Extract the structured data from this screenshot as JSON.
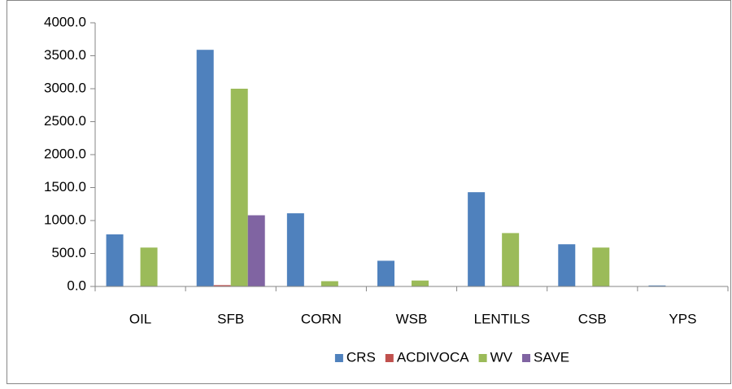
{
  "chart_data": {
    "type": "bar",
    "categories": [
      "OIL",
      "SFB",
      "CORN",
      "WSB",
      "LENTILS",
      "CSB",
      "YPS"
    ],
    "series": [
      {
        "name": "CRS",
        "color": "#4f81bd",
        "values": [
          790,
          3590,
          1110,
          390,
          1430,
          640,
          15
        ]
      },
      {
        "name": "ACDIVOCA",
        "color": "#c0504d",
        "values": [
          0,
          20,
          0,
          0,
          0,
          0,
          0
        ]
      },
      {
        "name": "WV",
        "color": "#9bbb59",
        "values": [
          590,
          3000,
          80,
          90,
          810,
          590,
          0
        ]
      },
      {
        "name": "SAVE",
        "color": "#8064a2",
        "values": [
          0,
          1080,
          0,
          0,
          0,
          0,
          0
        ]
      }
    ],
    "ylim": [
      0,
      4000
    ],
    "yticks": [
      {
        "value": 0,
        "label": "0.0"
      },
      {
        "value": 500,
        "label": "500.0"
      },
      {
        "value": 1000,
        "label": "1000.0"
      },
      {
        "value": 1500,
        "label": "1500.0"
      },
      {
        "value": 2000,
        "label": "2000.0"
      },
      {
        "value": 2500,
        "label": "2500.0"
      },
      {
        "value": 3000,
        "label": "3000.0"
      },
      {
        "value": 3500,
        "label": "3500.0"
      },
      {
        "value": 4000,
        "label": "4000.0"
      }
    ],
    "grid": false,
    "legend": "bottom"
  }
}
